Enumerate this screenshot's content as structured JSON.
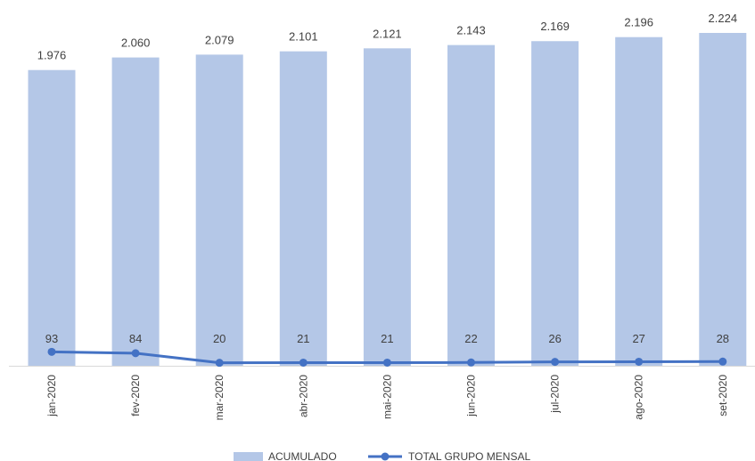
{
  "chart_data": {
    "type": "bar",
    "categories": [
      "jan-2020",
      "fev-2020",
      "mar-2020",
      "abr-2020",
      "mai-2020",
      "jun-2020",
      "jul-2020",
      "ago-2020",
      "set-2020"
    ],
    "series": [
      {
        "name": "ACUMULADO",
        "type": "bar",
        "color": "#b4c7e7",
        "values": [
          1976,
          2060,
          2079,
          2101,
          2121,
          2143,
          2169,
          2196,
          2224
        ],
        "labels": [
          "1.976",
          "2.060",
          "2.079",
          "2.101",
          "2.121",
          "2.143",
          "2.169",
          "2.196",
          "2.224"
        ]
      },
      {
        "name": "TOTAL GRUPO MENSAL",
        "type": "line",
        "color": "#4472c4",
        "values": [
          93,
          84,
          20,
          21,
          21,
          22,
          26,
          27,
          28
        ],
        "labels": [
          "93",
          "84",
          "20",
          "21",
          "21",
          "22",
          "26",
          "27",
          "28"
        ]
      }
    ],
    "ylim": [
      0,
      2224
    ],
    "grid": false,
    "legend_position": "bottom"
  }
}
